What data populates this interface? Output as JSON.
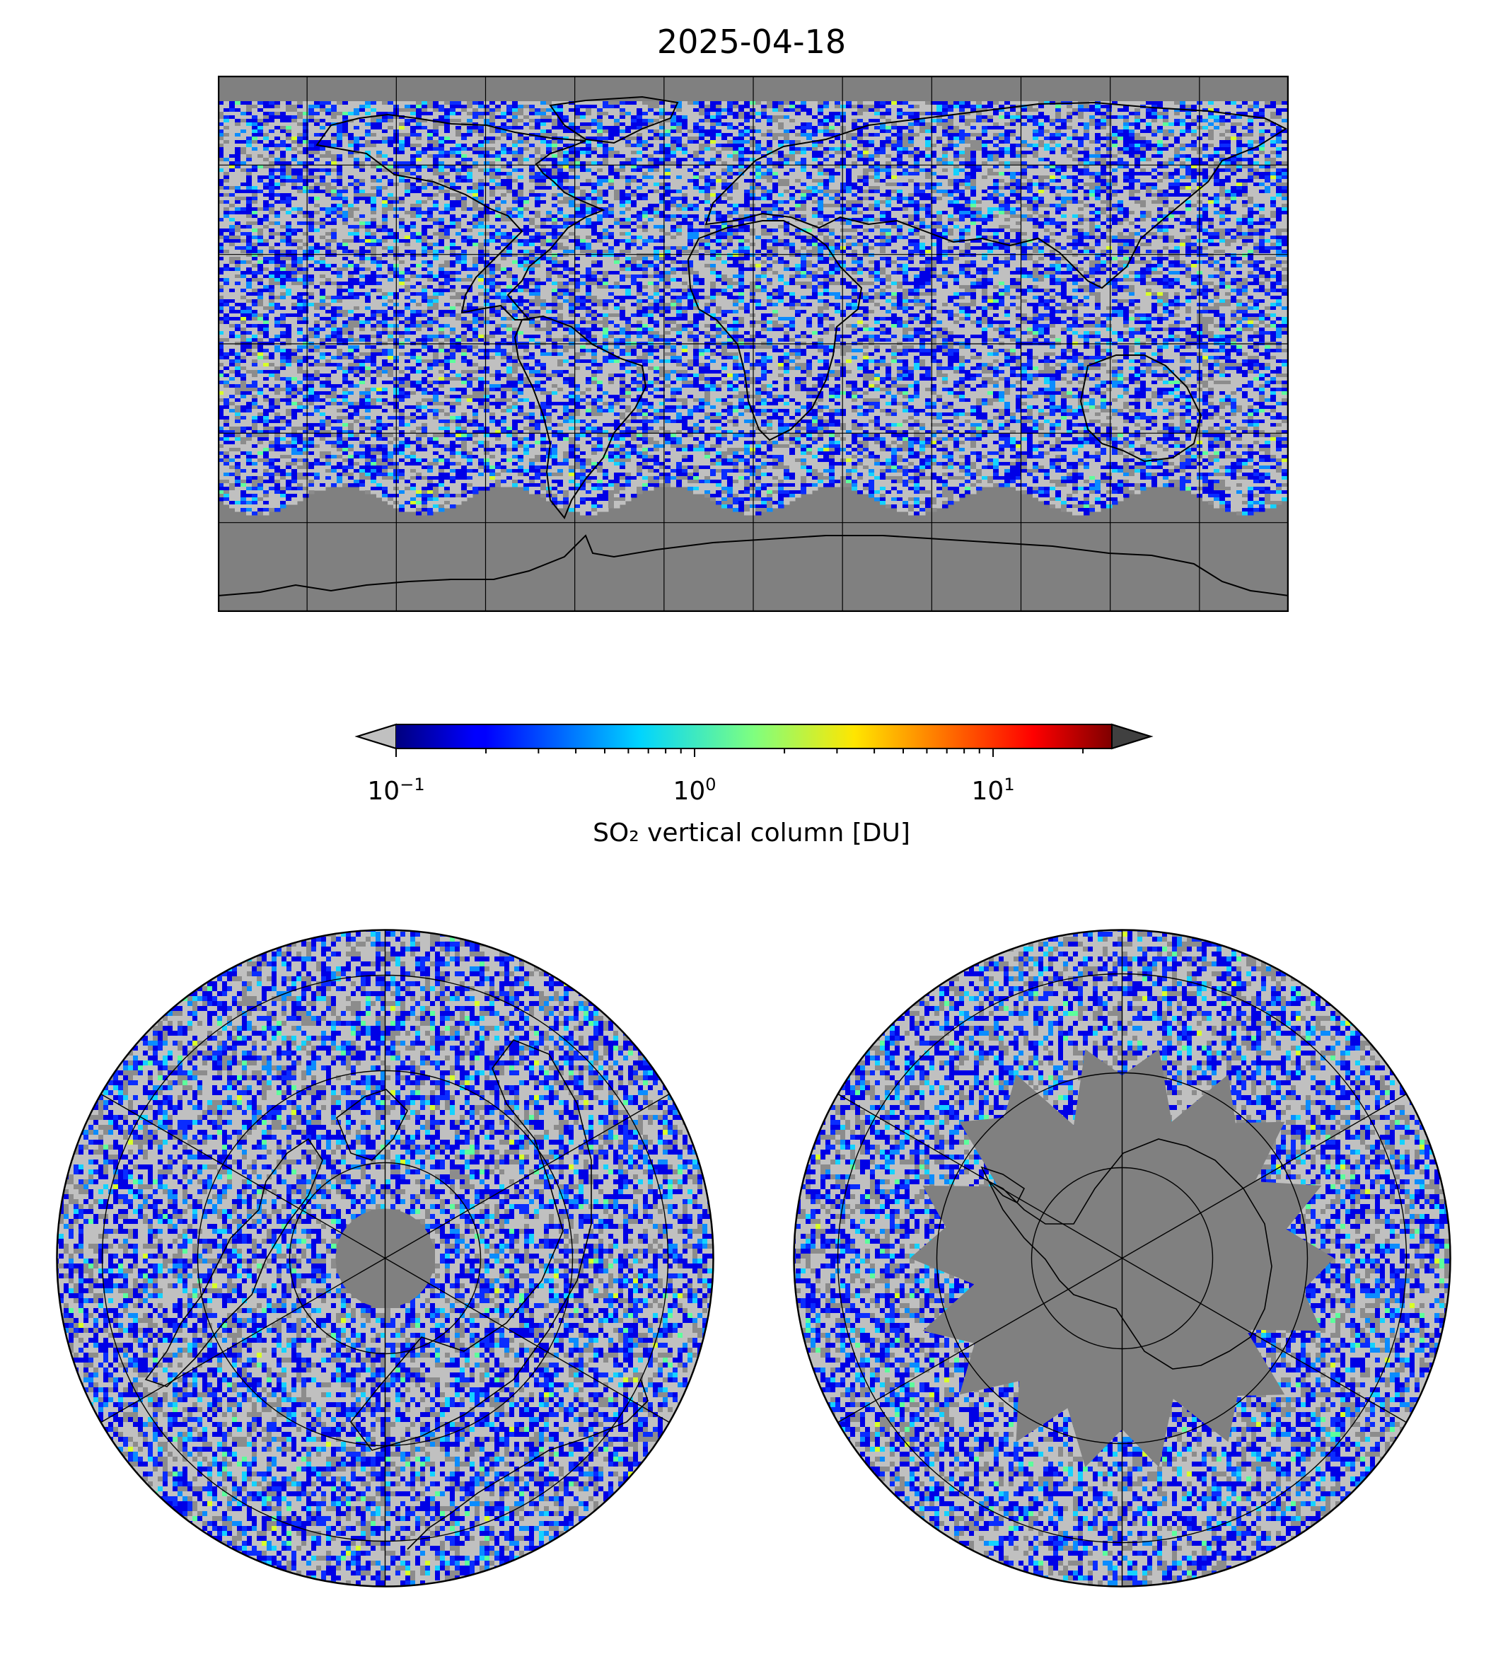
{
  "title": "2025-04-18",
  "colorbar": {
    "label": "SO₂ vertical column [DU]",
    "scale": "log",
    "range": [
      0.1,
      25
    ],
    "colormap": "jet",
    "extend": "both",
    "under_color": "#c0c0c0",
    "over_color": "#404040",
    "ticks": [
      {
        "base": "10",
        "exp": "−1",
        "value": 0.1
      },
      {
        "base": "10",
        "exp": "0",
        "value": 1
      },
      {
        "base": "10",
        "exp": "1",
        "value": 10
      }
    ]
  },
  "colors": {
    "missing": "#808080",
    "below_range": "#c0c0c0",
    "coast": "#000000"
  },
  "panels": [
    {
      "name": "global-map",
      "projection": "PlateCarree",
      "gridlines": "every 30°"
    },
    {
      "name": "north-polar-map",
      "projection": "North Polar Stereographic"
    },
    {
      "name": "south-polar-map",
      "projection": "South Polar Stereographic"
    }
  ]
}
